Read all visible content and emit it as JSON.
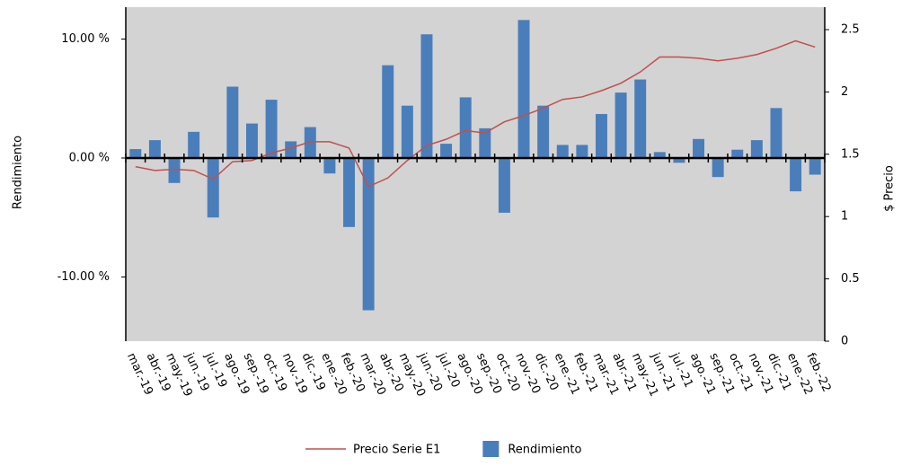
{
  "chart_data": {
    "type": "combo",
    "categories": [
      "mar.-19",
      "abr.-19",
      "may.-19",
      "jun.-19",
      "jul.-19",
      "ago.-19",
      "sep.-19",
      "oct.-19",
      "nov.-19",
      "dic.-19",
      "ene.-20",
      "feb.-20",
      "mar.-20",
      "abr.-20",
      "may.-20",
      "jun.-20",
      "jul.-20",
      "ago.-20",
      "sep.-20",
      "oct.-20",
      "nov.-20",
      "dic.-20",
      "ene.-21",
      "feb.-21",
      "mar.-21",
      "abr.-21",
      "may.-21",
      "jun.-21",
      "jul.-21",
      "ago.-21",
      "sep.-21",
      "oct.-21",
      "nov.-21",
      "dic.-21",
      "ene.-22",
      "feb.-22"
    ],
    "series": [
      {
        "name": "Precio Serie E1",
        "type": "line",
        "axis": "y2",
        "color": "#c0504d",
        "values": [
          1.4,
          1.37,
          1.38,
          1.37,
          1.3,
          1.44,
          1.45,
          1.51,
          1.55,
          1.6,
          1.6,
          1.55,
          1.24,
          1.31,
          1.45,
          1.57,
          1.62,
          1.69,
          1.67,
          1.76,
          1.81,
          1.87,
          1.94,
          1.96,
          2.01,
          2.07,
          2.16,
          2.28,
          2.28,
          2.27,
          2.25,
          2.27,
          2.3,
          2.35,
          2.41,
          2.36
        ]
      },
      {
        "name": "Rendimiento",
        "type": "bar",
        "color": "#4a7ebb",
        "values": [
          0.75,
          1.5,
          -2.1,
          2.2,
          -5.0,
          6.0,
          2.9,
          4.9,
          1.4,
          2.6,
          -1.3,
          -5.8,
          -12.8,
          7.8,
          4.4,
          10.4,
          1.2,
          5.1,
          2.5,
          -4.6,
          11.6,
          4.4,
          1.1,
          1.1,
          3.7,
          5.5,
          6.6,
          0.5,
          -0.4,
          1.6,
          -1.6,
          0.7,
          1.5,
          4.2,
          -2.8,
          -1.4
        ]
      }
    ],
    "y_label": "Rendimiento",
    "y2_label": "$ Precio",
    "ylim": [
      -15.4,
      12.68
    ],
    "yticks": [
      {
        "value": -10,
        "label": "-10.00 %"
      },
      {
        "value": 0,
        "label": "0.00 %"
      },
      {
        "value": 10,
        "label": "10.00 %"
      }
    ],
    "y2lim": [
      0,
      2.68
    ],
    "y2ticks": [
      0,
      0.5,
      1,
      1.5,
      2,
      2.5
    ],
    "background": "#d3d3d3",
    "legend": "bottom"
  }
}
